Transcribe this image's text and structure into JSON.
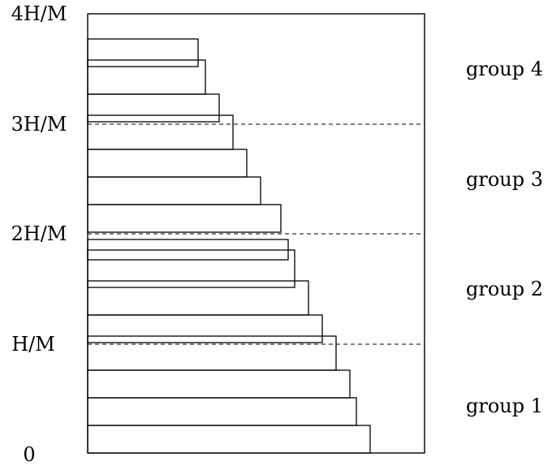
{
  "y_labels": {
    "zero": "0",
    "h1": "H/M",
    "h2": "2H/M",
    "h3": "3H/M",
    "h4": "4H/M"
  },
  "group_labels": {
    "g1": "group 1",
    "g2": "group 2",
    "g3": "group 3",
    "g4": "group 4"
  },
  "stack_items": [
    {
      "length": 348,
      "thickness": 34
    },
    {
      "length": 331,
      "thickness": 34
    },
    {
      "length": 323,
      "thickness": 34
    },
    {
      "length": 306,
      "thickness": 42
    },
    {
      "length": 289,
      "thickness": 34
    },
    {
      "length": 272,
      "thickness": 42
    },
    {
      "length": 255,
      "thickness": 46
    },
    {
      "length": 247,
      "thickness": 25
    },
    {
      "length": 238,
      "thickness": 34
    },
    {
      "length": 213,
      "thickness": 34
    },
    {
      "length": 196,
      "thickness": 34
    },
    {
      "length": 179,
      "thickness": 42
    },
    {
      "length": 162,
      "thickness": 34
    },
    {
      "length": 145,
      "thickness": 42
    },
    {
      "length": 136,
      "thickness": 34
    }
  ]
}
